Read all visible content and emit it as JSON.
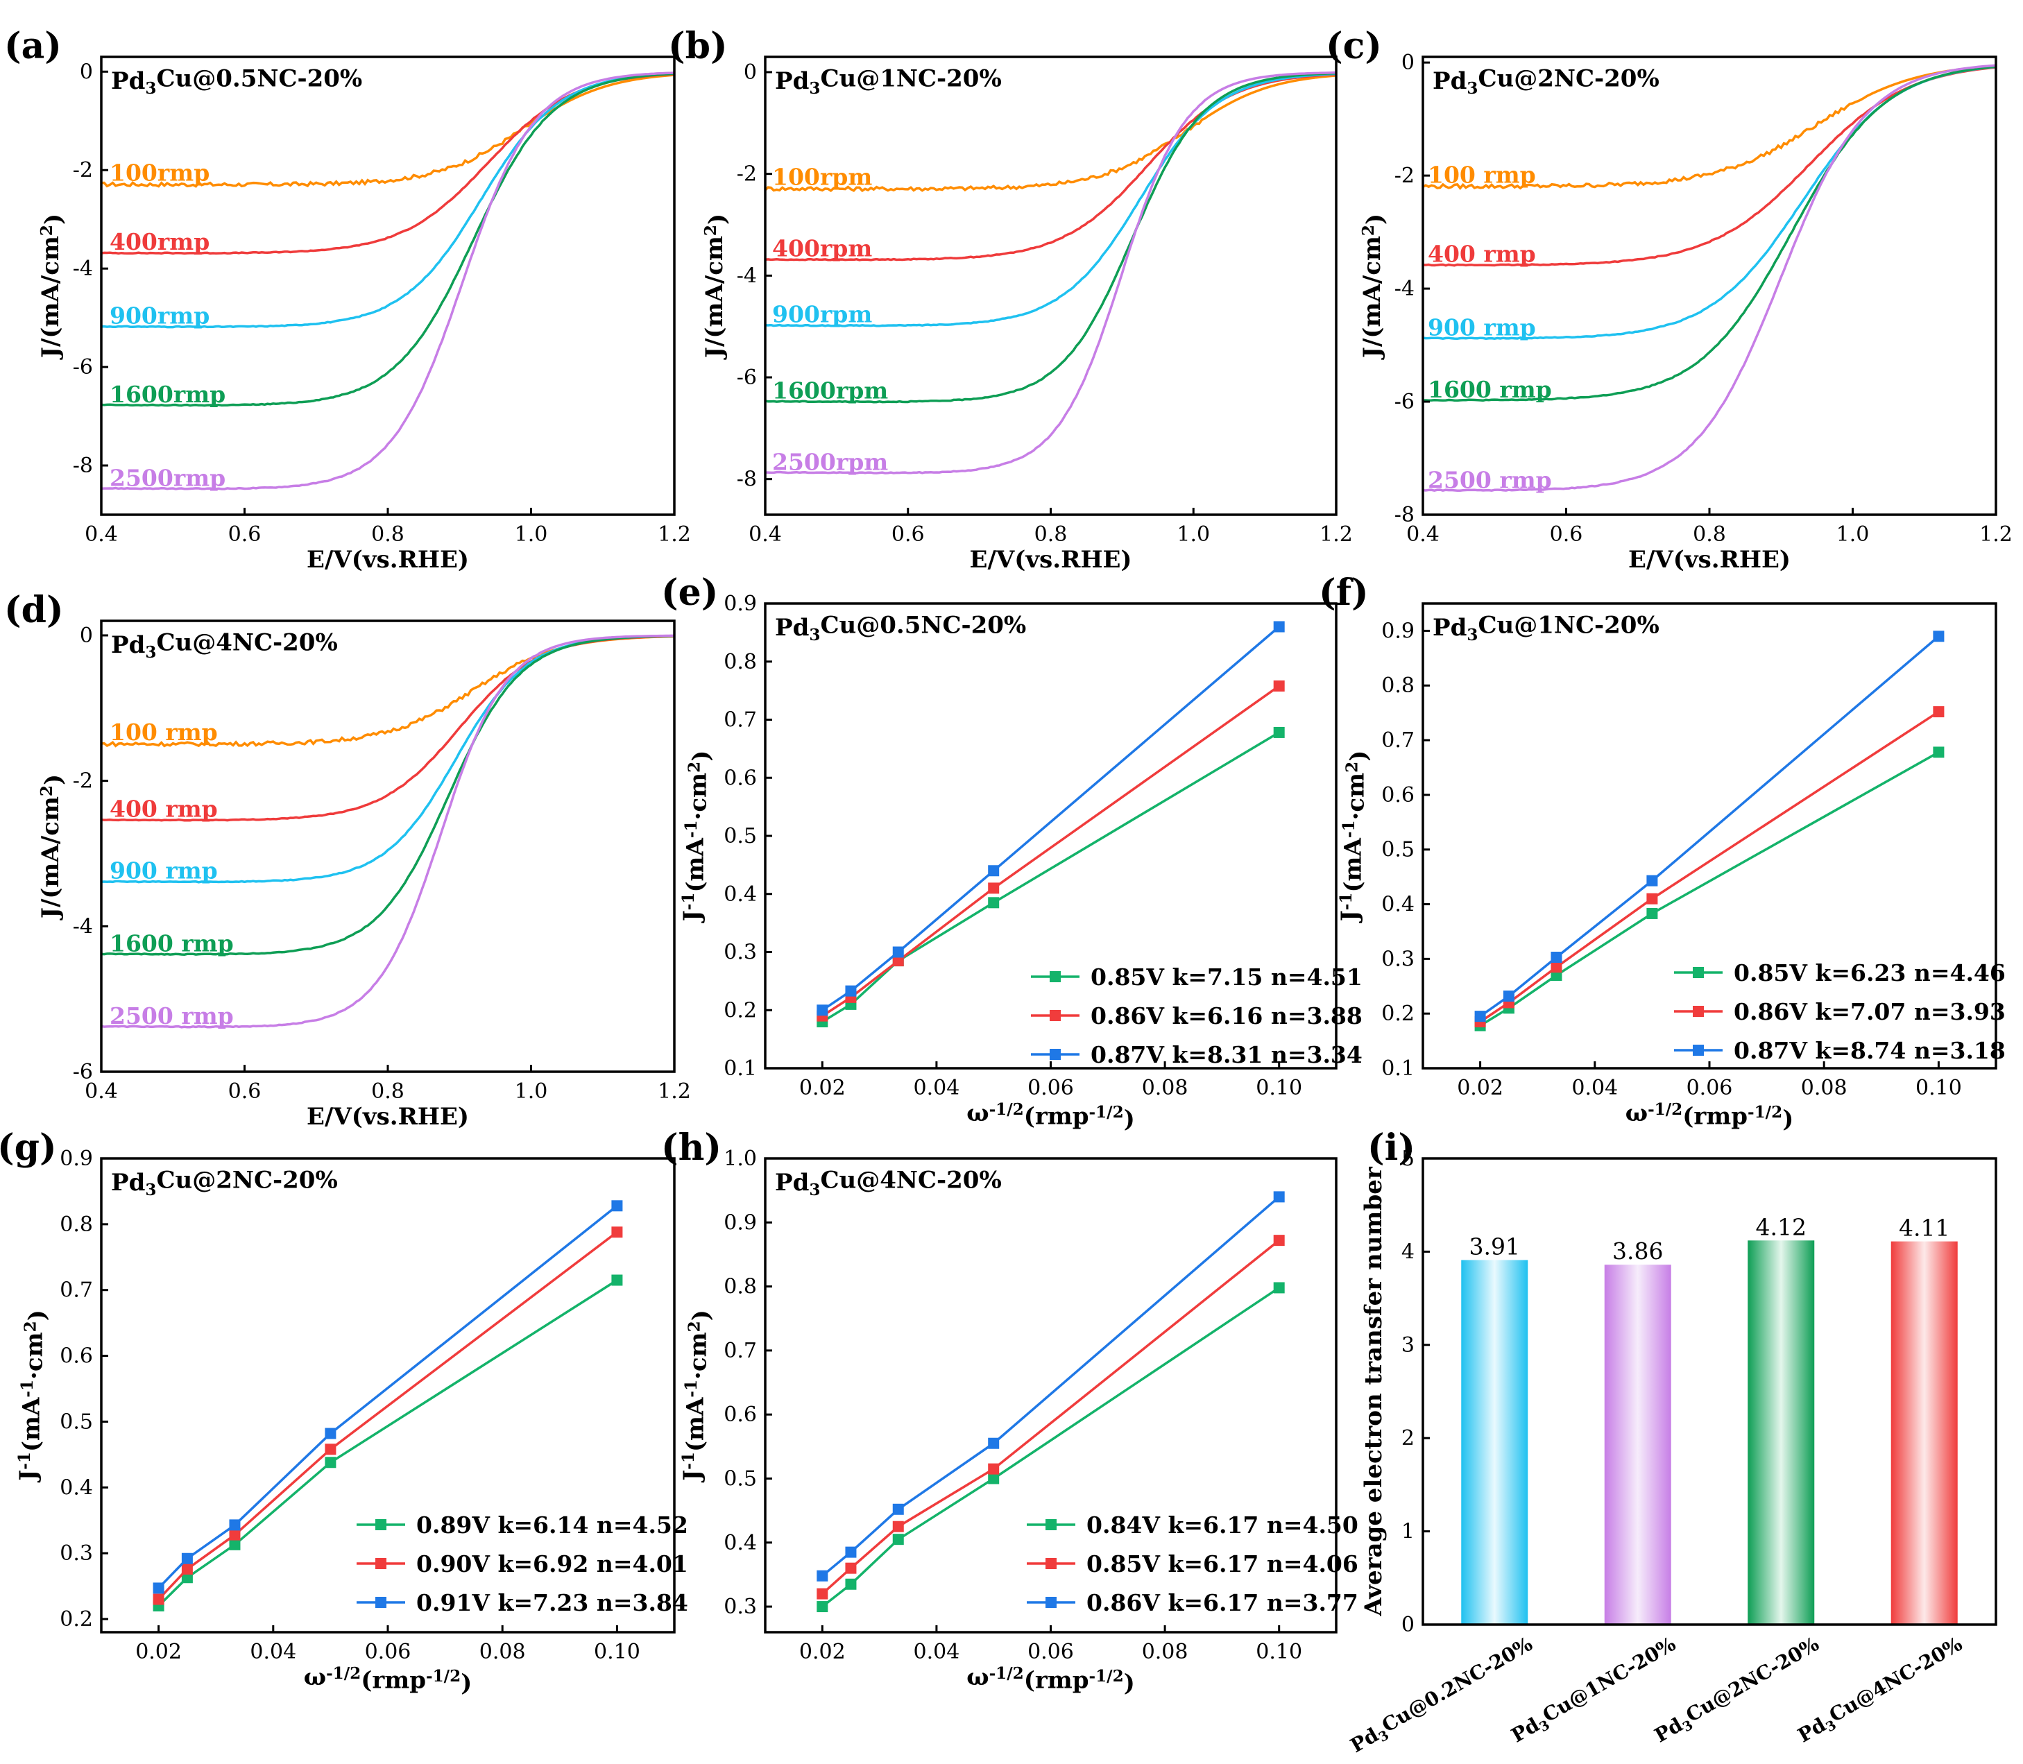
{
  "colors": {
    "c100": "#ff8c00",
    "c400": "#ef3b3b",
    "c900": "#1fc1f0",
    "c1600": "#0e9e55",
    "c2500": "#c77ee6",
    "green": "#14b36a",
    "red": "#f03c3c",
    "blue": "#1f78e6",
    "bar_colors": [
      "#1fc1f0",
      "#c77ee6",
      "#0e9e55",
      "#f03c3c"
    ]
  },
  "chart_data": [
    {
      "panel": "(a)",
      "type": "line",
      "title": "Pd3Cu@0.5NC-20%",
      "xlabel": "E/V(vs.RHE)",
      "ylabel": "J/(mA/cm2)",
      "xlim": [
        0.4,
        1.2
      ],
      "ylim": [
        -9,
        0.3
      ],
      "xticks": [
        "0.4",
        "0.6",
        "0.8",
        "1.0",
        "1.2"
      ],
      "yticks": [
        "0",
        "-2",
        "-4",
        "-6",
        "-8"
      ],
      "series": [
        {
          "name": "100rmp",
          "plateau": -2.3,
          "onset": 0.99,
          "width": 0.06
        },
        {
          "name": "400rmp",
          "plateau": -3.7,
          "onset": 0.94,
          "width": 0.06
        },
        {
          "name": "900rmp",
          "plateau": -5.2,
          "onset": 0.93,
          "width": 0.055
        },
        {
          "name": "1600rmp",
          "plateau": -6.8,
          "onset": 0.92,
          "width": 0.055
        },
        {
          "name": "2500rmp",
          "plateau": -8.5,
          "onset": 0.905,
          "width": 0.05
        }
      ]
    },
    {
      "panel": "(b)",
      "type": "line",
      "title": "Pd3Cu@1NC-20%",
      "xlabel": "E/V(vs.RHE)",
      "ylabel": "J/(mA/cm2)",
      "xlim": [
        0.4,
        1.2
      ],
      "ylim": [
        -8.7,
        0.3
      ],
      "xticks": [
        "0.4",
        "0.6",
        "0.8",
        "1.0",
        "1.2"
      ],
      "yticks": [
        "0",
        "-2",
        "-4",
        "-6",
        "-8"
      ],
      "series": [
        {
          "name": "100rpm",
          "plateau": -2.3,
          "onset": 0.99,
          "width": 0.06
        },
        {
          "name": "400rpm",
          "plateau": -3.7,
          "onset": 0.935,
          "width": 0.06
        },
        {
          "name": "900rpm",
          "plateau": -5.0,
          "onset": 0.925,
          "width": 0.055
        },
        {
          "name": "1600rpm",
          "plateau": -6.5,
          "onset": 0.915,
          "width": 0.05
        },
        {
          "name": "2500rpm",
          "plateau": -7.9,
          "onset": 0.9,
          "width": 0.045
        }
      ]
    },
    {
      "panel": "(c)",
      "type": "line",
      "title": "Pd3Cu@2NC-20%",
      "xlabel": "E/V(vs.RHE)",
      "ylabel": "J/(mA/cm2)",
      "xlim": [
        0.4,
        1.2
      ],
      "ylim": [
        -8,
        0.1
      ],
      "xticks": [
        "0.4",
        "0.6",
        "0.8",
        "1.0",
        "1.2"
      ],
      "yticks": [
        "0",
        "-2",
        "-4",
        "-6",
        "-8"
      ],
      "series": [
        {
          "name": "100 rmp",
          "plateau": -2.2,
          "onset": 0.95,
          "width": 0.07
        },
        {
          "name": "400 rmp",
          "plateau": -3.6,
          "onset": 0.94,
          "width": 0.07
        },
        {
          "name": "900 rmp",
          "plateau": -4.9,
          "onset": 0.93,
          "width": 0.065
        },
        {
          "name": "1600 rmp",
          "plateau": -6.0,
          "onset": 0.915,
          "width": 0.065
        },
        {
          "name": "2500 rmp",
          "plateau": -7.6,
          "onset": 0.9,
          "width": 0.06
        }
      ]
    },
    {
      "panel": "(d)",
      "type": "line",
      "title": "Pd3Cu@4NC-20%",
      "xlabel": "E/V(vs.RHE)",
      "ylabel": "J/(mA/cm2)",
      "xlim": [
        0.4,
        1.2
      ],
      "ylim": [
        -6,
        0.2
      ],
      "xticks": [
        "0.4",
        "0.6",
        "0.8",
        "1.0",
        "1.2"
      ],
      "yticks": [
        "0",
        "-2",
        "-4",
        "-6"
      ],
      "series": [
        {
          "name": "100 rmp",
          "plateau": -1.5,
          "onset": 0.92,
          "width": 0.06
        },
        {
          "name": "400 rmp",
          "plateau": -2.55,
          "onset": 0.9,
          "width": 0.055
        },
        {
          "name": "900 rmp",
          "plateau": -3.4,
          "onset": 0.895,
          "width": 0.05
        },
        {
          "name": "1600 rmp",
          "plateau": -4.4,
          "onset": 0.885,
          "width": 0.05
        },
        {
          "name": "2500 rmp",
          "plateau": -5.4,
          "onset": 0.875,
          "width": 0.045
        }
      ]
    },
    {
      "panel": "(e)",
      "type": "line",
      "title": "Pd3Cu@0.5NC-20%",
      "xlabel": "ω-1/2(rmp-1/2)",
      "ylabel": "J-1(mA-1·cm2)",
      "xlim": [
        0.01,
        0.11
      ],
      "ylim": [
        0.1,
        0.9
      ],
      "xticks": [
        "0.02",
        "0.04",
        "0.06",
        "0.08",
        "0.10"
      ],
      "yticks": [
        "0.1",
        "0.2",
        "0.3",
        "0.4",
        "0.5",
        "0.6",
        "0.7",
        "0.8",
        "0.9"
      ],
      "x": [
        0.02,
        0.025,
        0.0333,
        0.05,
        0.1
      ],
      "series": [
        {
          "name": "0.85V k=7.15 n=4.51",
          "values": [
            0.18,
            0.21,
            0.285,
            0.385,
            0.678
          ]
        },
        {
          "name": "0.86V k=6.16 n=3.88",
          "values": [
            0.19,
            0.222,
            0.285,
            0.41,
            0.758
          ]
        },
        {
          "name": "0.87V k=8.31 n=3.34",
          "values": [
            0.2,
            0.233,
            0.3,
            0.44,
            0.86
          ]
        }
      ]
    },
    {
      "panel": "(f)",
      "type": "line",
      "title": "Pd3Cu@1NC-20%",
      "xlabel": "ω-1/2(rmp-1/2)",
      "ylabel": "J-1(mA-1·cm2)",
      "xlim": [
        0.01,
        0.11
      ],
      "ylim": [
        0.1,
        0.95
      ],
      "xticks": [
        "0.02",
        "0.04",
        "0.06",
        "0.08",
        "0.10"
      ],
      "yticks": [
        "0.1",
        "0.2",
        "0.3",
        "0.4",
        "0.5",
        "0.6",
        "0.7",
        "0.8",
        "0.9"
      ],
      "x": [
        0.02,
        0.025,
        0.0333,
        0.05,
        0.1
      ],
      "series": [
        {
          "name": "0.85V k=6.23 n=4.46",
          "values": [
            0.178,
            0.21,
            0.27,
            0.383,
            0.678
          ]
        },
        {
          "name": "0.86V k=7.07 n=3.93",
          "values": [
            0.185,
            0.22,
            0.285,
            0.41,
            0.752
          ]
        },
        {
          "name": "0.87V k=8.74 n=3.18",
          "values": [
            0.195,
            0.232,
            0.303,
            0.443,
            0.89
          ]
        }
      ]
    },
    {
      "panel": "(g)",
      "type": "line",
      "title": "Pd3Cu@2NC-20%",
      "xlabel": "ω-1/2(rmp-1/2)",
      "ylabel": "J-1(mA-1·cm2)",
      "xlim": [
        0.01,
        0.11
      ],
      "ylim": [
        0.18,
        0.9
      ],
      "xticks": [
        "0.02",
        "0.04",
        "0.06",
        "0.08",
        "0.10"
      ],
      "yticks": [
        "0.2",
        "0.3",
        "0.4",
        "0.5",
        "0.6",
        "0.7",
        "0.8",
        "0.9"
      ],
      "x": [
        0.02,
        0.025,
        0.0333,
        0.05,
        0.1
      ],
      "series": [
        {
          "name": "0.89V k=6.14 n=4.52",
          "values": [
            0.22,
            0.263,
            0.313,
            0.438,
            0.715
          ]
        },
        {
          "name": "0.90V k=6.92 n=4.01",
          "values": [
            0.23,
            0.276,
            0.328,
            0.458,
            0.788
          ]
        },
        {
          "name": "0.91V k=7.23 n=3.84",
          "values": [
            0.247,
            0.292,
            0.343,
            0.482,
            0.828
          ]
        }
      ]
    },
    {
      "panel": "(h)",
      "type": "line",
      "title": "Pd3Cu@4NC-20%",
      "xlabel": "ω-1/2(rmp-1/2)",
      "ylabel": "J-1(mA-1·cm2)",
      "xlim": [
        0.01,
        0.11
      ],
      "ylim": [
        0.26,
        1.0
      ],
      "xticks": [
        "0.02",
        "0.04",
        "0.06",
        "0.08",
        "0.10"
      ],
      "yticks": [
        "0.3",
        "0.4",
        "0.5",
        "0.6",
        "0.7",
        "0.8",
        "0.9",
        "1.0"
      ],
      "x": [
        0.02,
        0.025,
        0.0333,
        0.05,
        0.1
      ],
      "series": [
        {
          "name": "0.84V k=6.17 n=4.50",
          "values": [
            0.3,
            0.335,
            0.405,
            0.5,
            0.798
          ]
        },
        {
          "name": "0.85V k=6.17 n=4.06",
          "values": [
            0.32,
            0.36,
            0.425,
            0.515,
            0.872
          ]
        },
        {
          "name": "0.86V k=6.17 n=3.77",
          "values": [
            0.348,
            0.385,
            0.452,
            0.555,
            0.94
          ]
        }
      ]
    },
    {
      "panel": "(i)",
      "type": "bar",
      "title": "",
      "xlabel": "",
      "ylabel": "Average electron transfer number",
      "ylim": [
        0,
        5
      ],
      "yticks": [
        "0",
        "1",
        "2",
        "3",
        "4",
        "5"
      ],
      "categories": [
        "Pd3Cu@0.2NC-20%",
        "Pd3Cu@1NC-20%",
        "Pd3Cu@2NC-20%",
        "Pd3Cu@4NC-20%"
      ],
      "values": [
        3.91,
        3.86,
        4.12,
        4.11
      ],
      "value_labels": [
        "3.91",
        "3.86",
        "4.12",
        "4.11"
      ]
    }
  ]
}
